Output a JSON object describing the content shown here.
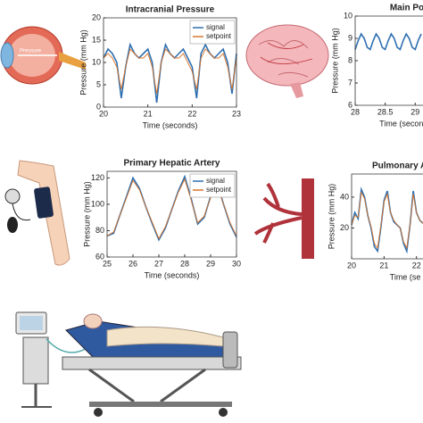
{
  "chart_data": [
    {
      "type": "line",
      "title": "Intracranial Pressure",
      "x_label": "Time (seconds)",
      "y_label": "Pressure (mm Hg)",
      "x": [
        20,
        20.1,
        20.2,
        20.3,
        20.4,
        20.5,
        20.6,
        20.7,
        20.8,
        20.9,
        21,
        21.1,
        21.2,
        21.3,
        21.4,
        21.5,
        21.6,
        21.7,
        21.8,
        21.9,
        22,
        22.1,
        22.2,
        22.3,
        22.4,
        22.5,
        22.6,
        22.7,
        22.8,
        22.9,
        23
      ],
      "series": [
        {
          "name": "signal",
          "color": "#2f6fb0",
          "values": [
            11,
            13,
            12,
            10,
            2,
            9,
            14,
            12,
            11,
            12,
            13,
            10,
            1,
            10,
            14,
            12,
            11,
            12,
            13,
            11,
            9,
            2,
            12,
            14,
            12,
            11,
            12,
            13,
            10,
            3,
            12
          ]
        },
        {
          "name": "setpoint",
          "color": "#d9752a",
          "values": [
            11,
            12,
            11,
            9,
            4,
            9,
            13,
            12,
            11,
            11,
            12,
            9,
            3,
            10,
            13,
            12,
            11,
            11,
            12,
            10,
            8,
            4,
            11,
            13,
            12,
            11,
            11,
            12,
            9,
            4,
            11
          ]
        }
      ],
      "xlim": [
        20,
        23
      ],
      "xticks": [
        20,
        21,
        22,
        23
      ],
      "ylim": [
        0,
        20
      ],
      "yticks": [
        0,
        5,
        10,
        15,
        20
      ],
      "legend": "upper-right"
    },
    {
      "type": "line",
      "title": "Main Po",
      "x_label": "Time (seconds)",
      "y_label": "Pressure (mm Hg)",
      "x": [
        28,
        28.05,
        28.1,
        28.15,
        28.2,
        28.25,
        28.3,
        28.35,
        28.4,
        28.45,
        28.5,
        28.55,
        28.6,
        28.65,
        28.7,
        28.75,
        28.8,
        28.85,
        28.9,
        28.95,
        29,
        29.05,
        29.1
      ],
      "series": [
        {
          "color": "#2f6fb0",
          "values": [
            8.5,
            8.9,
            9.2,
            9.0,
            8.6,
            8.5,
            8.9,
            9.2,
            9.0,
            8.6,
            8.5,
            8.9,
            9.2,
            9.0,
            8.6,
            8.5,
            8.9,
            9.2,
            9.0,
            8.6,
            8.5,
            8.9,
            9.2
          ]
        }
      ],
      "xlim": [
        28,
        29.13
      ],
      "xticks": [
        28,
        28.5,
        29
      ],
      "ylim": [
        6,
        10
      ],
      "yticks": [
        6,
        7,
        8,
        9,
        10
      ]
    },
    {
      "type": "line",
      "title": "Primary Hepatic Artery",
      "x_label": "Time (seconds)",
      "y_label": "Pressure (mm Hg)",
      "x": [
        25,
        25.25,
        25.5,
        25.75,
        26,
        26.25,
        26.5,
        26.75,
        27,
        27.25,
        27.5,
        27.75,
        28,
        28.25,
        28.5,
        28.75,
        29,
        29.25,
        29.5,
        29.75,
        30
      ],
      "series": [
        {
          "name": "signal",
          "color": "#2f6fb0",
          "values": [
            76,
            78,
            92,
            106,
            120,
            112,
            98,
            85,
            73,
            82,
            96,
            110,
            121,
            104,
            85,
            90,
            106,
            116,
            100,
            85,
            75
          ]
        },
        {
          "name": "setpoint",
          "color": "#d9752a",
          "values": [
            76,
            79,
            92,
            105,
            118,
            111,
            98,
            86,
            74,
            83,
            96,
            109,
            119,
            103,
            86,
            91,
            105,
            114,
            100,
            86,
            76
          ]
        }
      ],
      "xlim": [
        25,
        30
      ],
      "xticks": [
        25,
        26,
        27,
        28,
        29,
        30
      ],
      "ylim": [
        60,
        125
      ],
      "yticks": [
        60,
        80,
        100,
        120
      ],
      "legend": "upper-right"
    },
    {
      "type": "line",
      "title": "Pulmonary Arte",
      "x_label": "Time (se",
      "y_label": "Pressure (mm Hg)",
      "x": [
        20,
        20.1,
        20.2,
        20.3,
        20.4,
        20.5,
        20.6,
        20.7,
        20.8,
        20.9,
        21,
        21.1,
        21.2,
        21.3,
        21.4,
        21.5,
        21.6,
        21.7,
        21.8,
        21.9,
        22,
        22.1,
        22.2
      ],
      "series": [
        {
          "color": "#2f6fb0",
          "values": [
            22,
            30,
            26,
            45,
            40,
            28,
            20,
            8,
            5,
            20,
            38,
            44,
            30,
            24,
            22,
            20,
            10,
            5,
            22,
            44,
            30,
            25,
            23
          ]
        },
        {
          "color": "#d9752a",
          "values": [
            22,
            28,
            27,
            43,
            39,
            28,
            21,
            10,
            7,
            21,
            37,
            42,
            30,
            25,
            22,
            20,
            11,
            7,
            22,
            42,
            30,
            25,
            23
          ]
        }
      ],
      "xlim": [
        20,
        22.2
      ],
      "xticks": [
        20,
        21,
        22
      ],
      "ylim": [
        0,
        55
      ],
      "yticks": [
        20,
        40
      ]
    }
  ],
  "illustrations": {
    "eye_label": "Pressure"
  }
}
